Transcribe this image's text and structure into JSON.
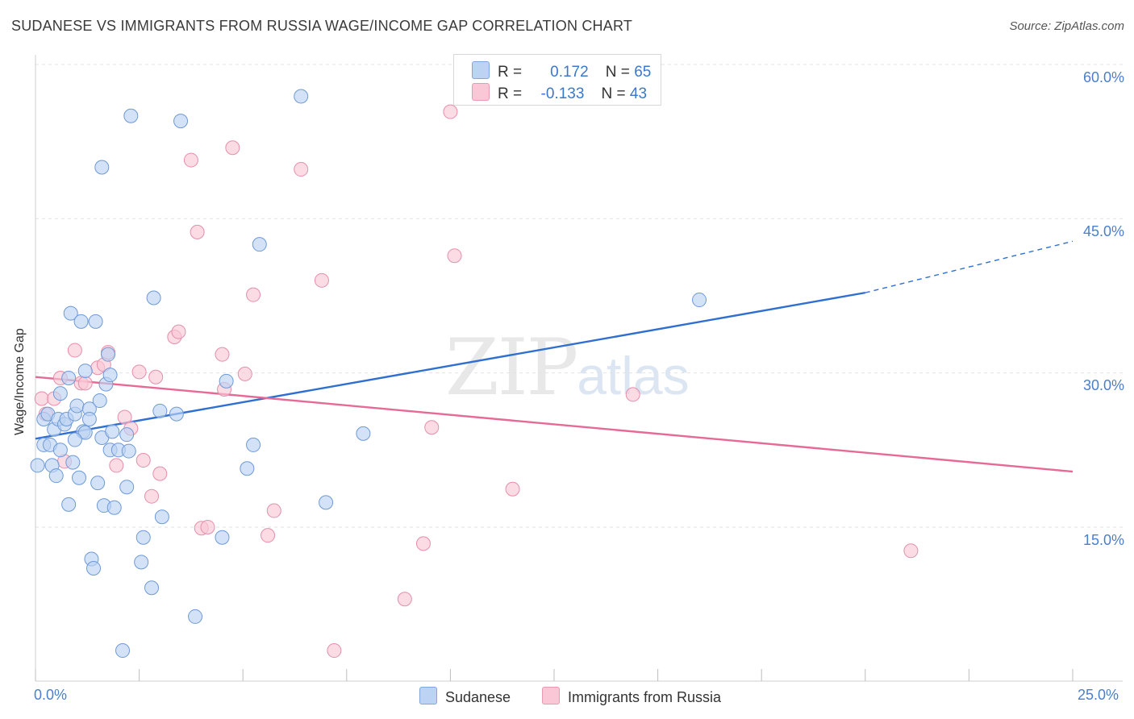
{
  "chart_data": {
    "type": "scatter",
    "title": "SUDANESE VS IMMIGRANTS FROM RUSSIA WAGE/INCOME GAP CORRELATION CHART",
    "source": "Source: ZipAtlas.com",
    "ylabel": "Wage/Income Gap",
    "xlim": [
      0,
      25
    ],
    "ylim": [
      0,
      62
    ],
    "y_ticks": [
      "15.0%",
      "30.0%",
      "45.0%",
      "60.0%"
    ],
    "y_tick_values": [
      15,
      30,
      45,
      60
    ],
    "x_tick_labels": [
      "0.0%",
      "25.0%"
    ],
    "x_tick_values": [
      0,
      25
    ],
    "watermark": {
      "zip": "ZIP",
      "atlas": "atlas"
    },
    "stats": [
      {
        "r_label": "R =",
        "r": "0.172",
        "n_label": "N =",
        "n": "65"
      },
      {
        "r_label": "R =",
        "r": "-0.133",
        "n_label": "N =",
        "n": "43"
      }
    ],
    "legend": [
      "Sudanese",
      "Immigrants from Russia"
    ],
    "colors": {
      "sudanese_fill": "#bcd3f3",
      "sudanese_stroke": "#6d9ad8",
      "sudanese_line": "#2f6fd0",
      "russia_fill": "#f9c7d5",
      "russia_stroke": "#e58fab",
      "russia_line": "#e66a96"
    },
    "series": [
      {
        "name": "Sudanese",
        "trend": {
          "x": [
            0,
            20
          ],
          "y": [
            23.6,
            37.8
          ],
          "dashed_to": [
            25,
            42.8
          ]
        },
        "points": [
          [
            0.05,
            21
          ],
          [
            0.2,
            23
          ],
          [
            0.2,
            25.5
          ],
          [
            0.3,
            26
          ],
          [
            0.35,
            23
          ],
          [
            0.4,
            21
          ],
          [
            0.45,
            24.5
          ],
          [
            0.5,
            20
          ],
          [
            0.55,
            25.5
          ],
          [
            0.6,
            22.5
          ],
          [
            0.6,
            28
          ],
          [
            0.7,
            25
          ],
          [
            0.75,
            25.5
          ],
          [
            0.8,
            17.2
          ],
          [
            0.8,
            29.5
          ],
          [
            0.85,
            35.8
          ],
          [
            0.9,
            21.3
          ],
          [
            0.95,
            26
          ],
          [
            1.0,
            26.8
          ],
          [
            1.05,
            19.8
          ],
          [
            1.1,
            35
          ],
          [
            1.15,
            24.3
          ],
          [
            1.2,
            30.2
          ],
          [
            1.3,
            26.5
          ],
          [
            1.3,
            25.5
          ],
          [
            1.35,
            11.9
          ],
          [
            1.4,
            11
          ],
          [
            1.45,
            35
          ],
          [
            1.5,
            19.3
          ],
          [
            1.55,
            27.3
          ],
          [
            1.6,
            23.7
          ],
          [
            1.65,
            17.1
          ],
          [
            1.7,
            28.9
          ],
          [
            1.75,
            31.8
          ],
          [
            1.8,
            29.8
          ],
          [
            1.8,
            22.5
          ],
          [
            1.85,
            24.3
          ],
          [
            1.9,
            16.9
          ],
          [
            2.0,
            22.5
          ],
          [
            2.1,
            3
          ],
          [
            2.2,
            18.9
          ],
          [
            2.25,
            22.4
          ],
          [
            2.55,
            11.6
          ],
          [
            2.6,
            14
          ],
          [
            2.8,
            9.1
          ],
          [
            2.85,
            37.3
          ],
          [
            3.0,
            26.3
          ],
          [
            3.05,
            16
          ],
          [
            3.4,
            26
          ],
          [
            3.85,
            6.3
          ],
          [
            4.5,
            14
          ],
          [
            4.6,
            29.2
          ],
          [
            5.1,
            20.7
          ],
          [
            5.25,
            23
          ],
          [
            5.4,
            42.5
          ],
          [
            6.4,
            56.9
          ],
          [
            7.0,
            17.4
          ],
          [
            7.9,
            24.1
          ],
          [
            2.3,
            55
          ],
          [
            3.5,
            54.5
          ],
          [
            1.6,
            50
          ],
          [
            2.2,
            24
          ],
          [
            1.2,
            24.2
          ],
          [
            0.95,
            23.5
          ],
          [
            16.0,
            37.1
          ]
        ]
      },
      {
        "name": "Immigrants from Russia",
        "trend": {
          "x": [
            0,
            25
          ],
          "y": [
            29.6,
            20.4
          ]
        },
        "points": [
          [
            0.15,
            27.5
          ],
          [
            0.25,
            26
          ],
          [
            0.45,
            27.5
          ],
          [
            0.6,
            29.5
          ],
          [
            0.7,
            21.4
          ],
          [
            0.95,
            32.2
          ],
          [
            1.1,
            29
          ],
          [
            1.2,
            29
          ],
          [
            1.5,
            30.5
          ],
          [
            1.65,
            30.8
          ],
          [
            1.75,
            32
          ],
          [
            1.95,
            21
          ],
          [
            2.15,
            25.7
          ],
          [
            2.3,
            24.6
          ],
          [
            2.5,
            30.1
          ],
          [
            2.6,
            21.5
          ],
          [
            2.8,
            18
          ],
          [
            2.9,
            29.6
          ],
          [
            3.0,
            20.2
          ],
          [
            3.35,
            33.5
          ],
          [
            3.45,
            34
          ],
          [
            3.75,
            50.7
          ],
          [
            3.9,
            43.7
          ],
          [
            4.0,
            14.9
          ],
          [
            4.15,
            15
          ],
          [
            4.5,
            31.8
          ],
          [
            4.55,
            28.4
          ],
          [
            4.75,
            51.9
          ],
          [
            5.05,
            29.9
          ],
          [
            5.25,
            37.6
          ],
          [
            5.6,
            14.2
          ],
          [
            5.75,
            16.6
          ],
          [
            6.4,
            49.8
          ],
          [
            6.9,
            39
          ],
          [
            7.2,
            3
          ],
          [
            8.9,
            8
          ],
          [
            9.35,
            13.4
          ],
          [
            9.55,
            24.7
          ],
          [
            10.0,
            55.4
          ],
          [
            10.1,
            41.4
          ],
          [
            11.5,
            18.7
          ],
          [
            14.4,
            27.9
          ],
          [
            21.1,
            12.7
          ]
        ]
      }
    ]
  }
}
